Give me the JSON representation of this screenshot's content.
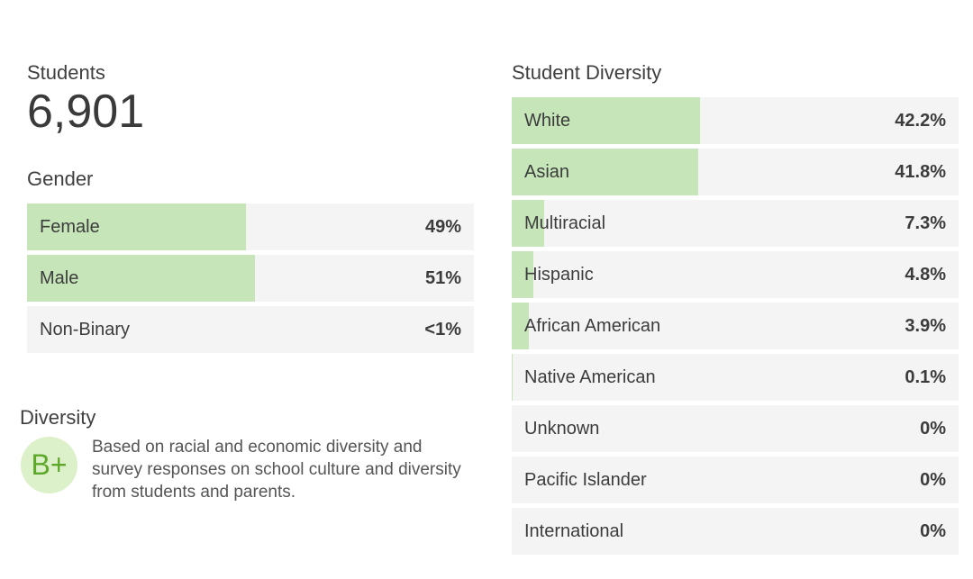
{
  "students": {
    "label": "Students",
    "count": "6,901"
  },
  "gender": {
    "title": "Gender",
    "rows": [
      {
        "label": "Female",
        "value": "49%",
        "share": 0.49
      },
      {
        "label": "Male",
        "value": "51%",
        "share": 0.51
      },
      {
        "label": "Non-Binary",
        "value": "<1%",
        "share": 0.0
      }
    ]
  },
  "diversity": {
    "title": "Diversity",
    "grade": "B+",
    "description": "Based on racial and economic diversity and survey responses on school culture and diversity from students and parents."
  },
  "student_diversity": {
    "title": "Student Diversity",
    "rows": [
      {
        "label": "White",
        "value": "42.2%",
        "share": 0.422
      },
      {
        "label": "Asian",
        "value": "41.8%",
        "share": 0.418
      },
      {
        "label": "Multiracial",
        "value": "7.3%",
        "share": 0.073
      },
      {
        "label": "Hispanic",
        "value": "4.8%",
        "share": 0.048
      },
      {
        "label": "African American",
        "value": "3.9%",
        "share": 0.039
      },
      {
        "label": "Native American",
        "value": "0.1%",
        "share": 0.001
      },
      {
        "label": "Unknown",
        "value": "0%",
        "share": 0.0
      },
      {
        "label": "Pacific Islander",
        "value": "0%",
        "share": 0.0
      },
      {
        "label": "International",
        "value": "0%",
        "share": 0.0
      }
    ]
  },
  "colors": {
    "bar_fill": "#c6e6b9",
    "bar_track": "#f4f4f4",
    "grade_bg": "#dcf0c9",
    "grade_text": "#5da829"
  }
}
